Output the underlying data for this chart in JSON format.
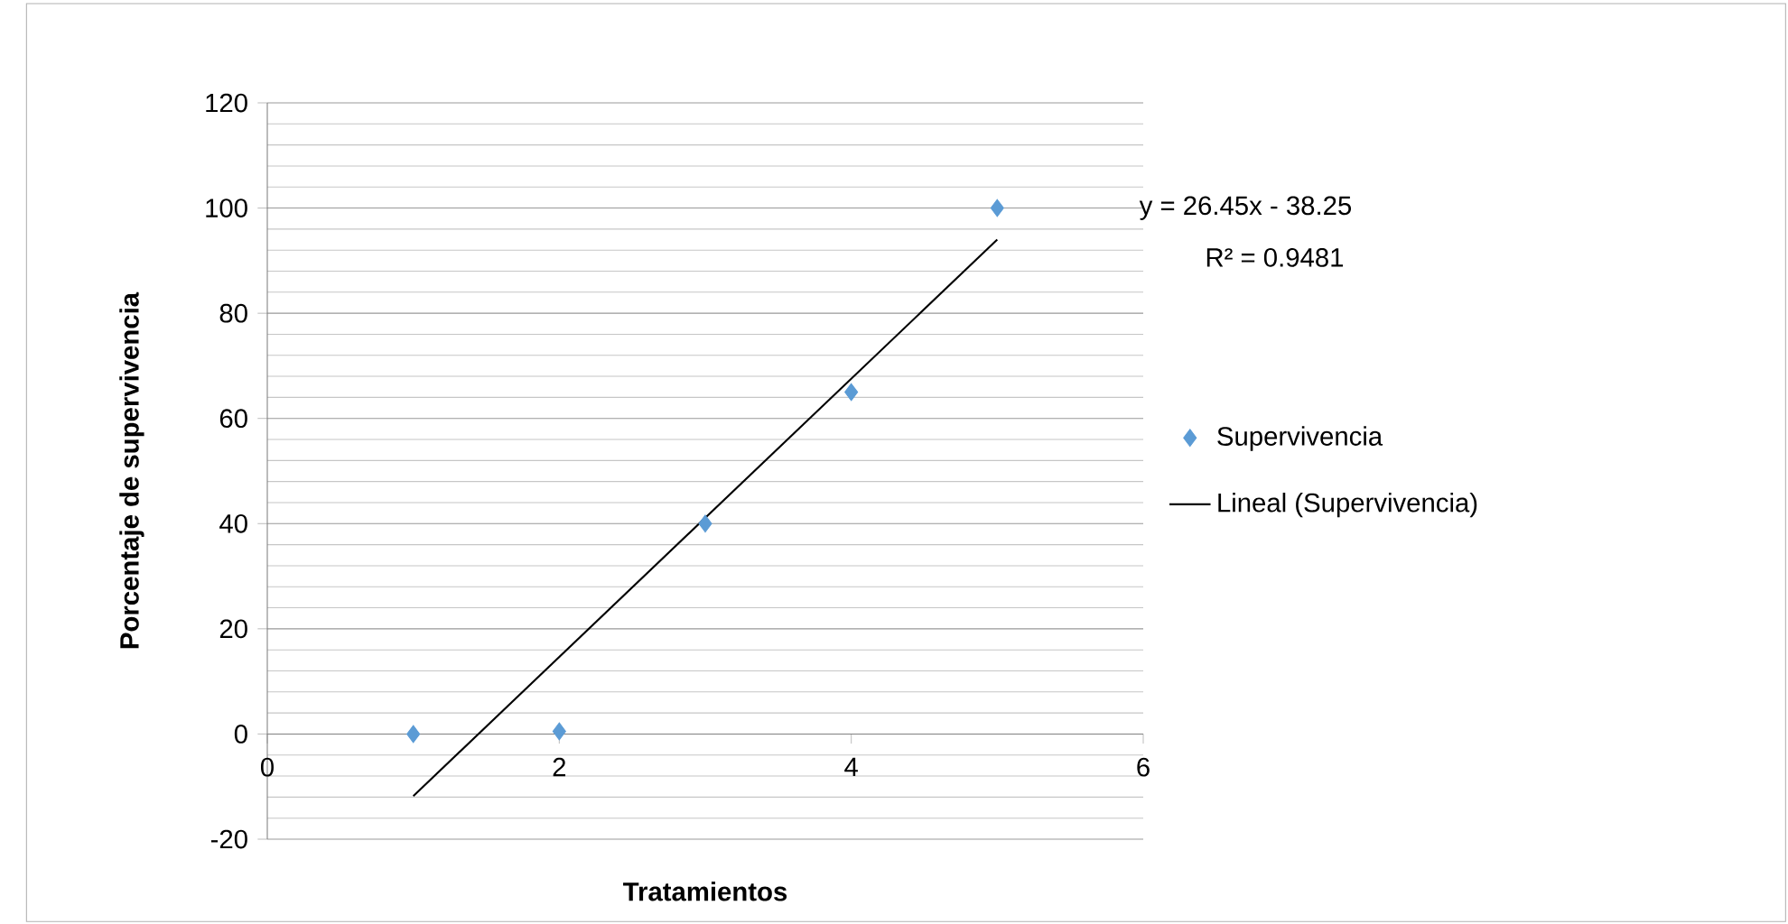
{
  "chart_data": {
    "type": "scatter",
    "xlabel": "Tratamientos",
    "ylabel": "Porcentaje de supervivencia",
    "xlim": [
      0,
      6
    ],
    "xticks": [
      0,
      2,
      4,
      6
    ],
    "ylim": [
      -20,
      120
    ],
    "yticks": [
      -20,
      0,
      20,
      40,
      60,
      80,
      100,
      120
    ],
    "grid": "y",
    "legend": "right",
    "annotations": [
      "y = 26.45x - 38.25",
      "R² = 0.9481"
    ],
    "series": [
      {
        "name": "Supervivencia",
        "marker": "diamond",
        "color": "#5b9bd5",
        "x": [
          1,
          2,
          3,
          4,
          5
        ],
        "values": [
          0,
          0.5,
          40,
          65,
          100
        ]
      },
      {
        "name": "Lineal (Supervivencia)",
        "type": "line",
        "marker": "none",
        "color": "#000000",
        "x": [
          1,
          5
        ],
        "values": [
          -11.8,
          94
        ]
      }
    ]
  }
}
